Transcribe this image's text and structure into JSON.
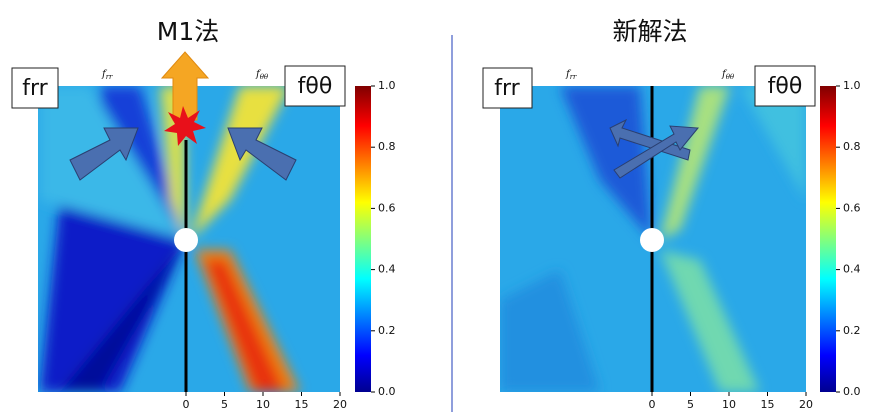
{
  "panels": [
    {
      "title": "M1法",
      "left_label": "frr",
      "right_label": "fθθ",
      "left_axis_title": {
        "base": "f",
        "sub": "rr"
      },
      "right_axis_title": {
        "base": "f",
        "sub": "θθ"
      },
      "xticks": [
        "0",
        "5",
        "10",
        "15",
        "20"
      ],
      "colorbar_ticks": [
        "1.0",
        "0.8",
        "0.6",
        "0.4",
        "0.2",
        "0.0"
      ]
    },
    {
      "title": "新解法",
      "left_label": "frr",
      "right_label": "fθθ",
      "left_axis_title": {
        "base": "f",
        "sub": "rr"
      },
      "right_axis_title": {
        "base": "f",
        "sub": "θθ"
      },
      "xticks": [
        "0",
        "5",
        "10",
        "15",
        "20"
      ],
      "colorbar_ticks": [
        "1.0",
        "0.8",
        "0.6",
        "0.4",
        "0.2",
        "0.0"
      ]
    }
  ]
}
